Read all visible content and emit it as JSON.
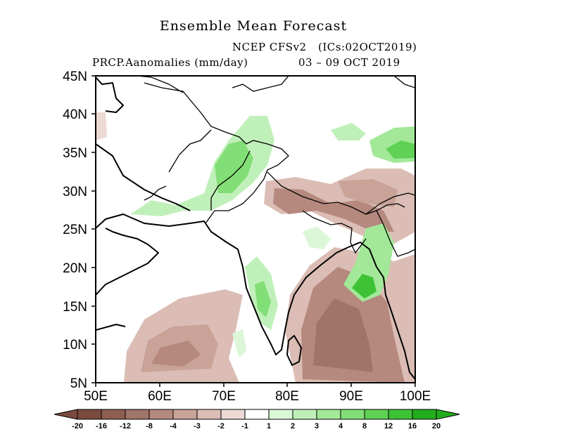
{
  "header": {
    "title": "Ensemble Mean Forecast",
    "model": "NCEP CFSv2",
    "ics": "(ICs:02OCT2019)",
    "variable": "PRCP.Aanomalies (mm/day)",
    "period": "03 – 09 OCT 2019"
  },
  "axes": {
    "lat_labels": [
      "45N",
      "40N",
      "35N",
      "30N",
      "25N",
      "20N",
      "15N",
      "10N",
      "5N"
    ],
    "lon_labels": [
      "50E",
      "60E",
      "70E",
      "80E",
      "90E",
      "100E"
    ]
  },
  "colorbar": {
    "labels": [
      "-20",
      "-16",
      "-12",
      "-8",
      "-4",
      "-3",
      "-2",
      "-1",
      "1",
      "2",
      "3",
      "4",
      "8",
      "12",
      "16",
      "20"
    ],
    "colors": [
      "#7a4a3e",
      "#8e5e51",
      "#a07468",
      "#b5897e",
      "#c9a298",
      "#dbbdb5",
      "#ecd9d3",
      "#ffffff",
      "#dcf7d8",
      "#c0f0b9",
      "#a2e898",
      "#82de76",
      "#5fd154",
      "#3ec235",
      "#23ad1e"
    ]
  }
}
